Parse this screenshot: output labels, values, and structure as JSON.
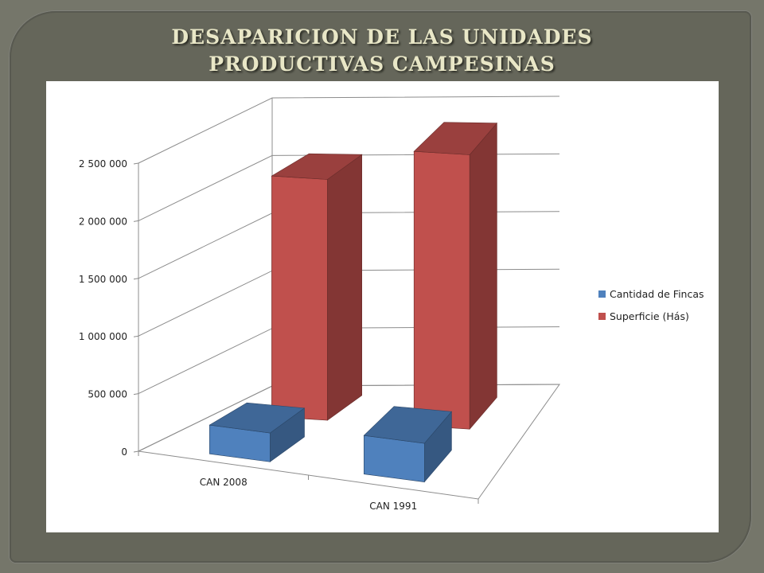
{
  "slide": {
    "title_line1": "DESAPARICION DE LAS UNIDADES",
    "title_line2": "PRODUCTIVAS CAMPESINAS"
  },
  "chart_data": {
    "type": "bar",
    "style": "3d-clustered-column",
    "categories": [
      "CAN 2008",
      "CAN 1991"
    ],
    "series": [
      {
        "name": "Cantidad de Fincas",
        "color": "#4f81bd",
        "values": [
          250000,
          335000
        ]
      },
      {
        "name": "Superficie (Hás)",
        "color": "#c0504d",
        "values": [
          2090000,
          2380000
        ]
      }
    ],
    "y_ticks": [
      "0",
      "500 000",
      "1 000 000",
      "1 500 000",
      "2 000 000",
      "2 500 000"
    ],
    "ylim": [
      0,
      2500000
    ],
    "grid": true,
    "legend_position": "right"
  }
}
